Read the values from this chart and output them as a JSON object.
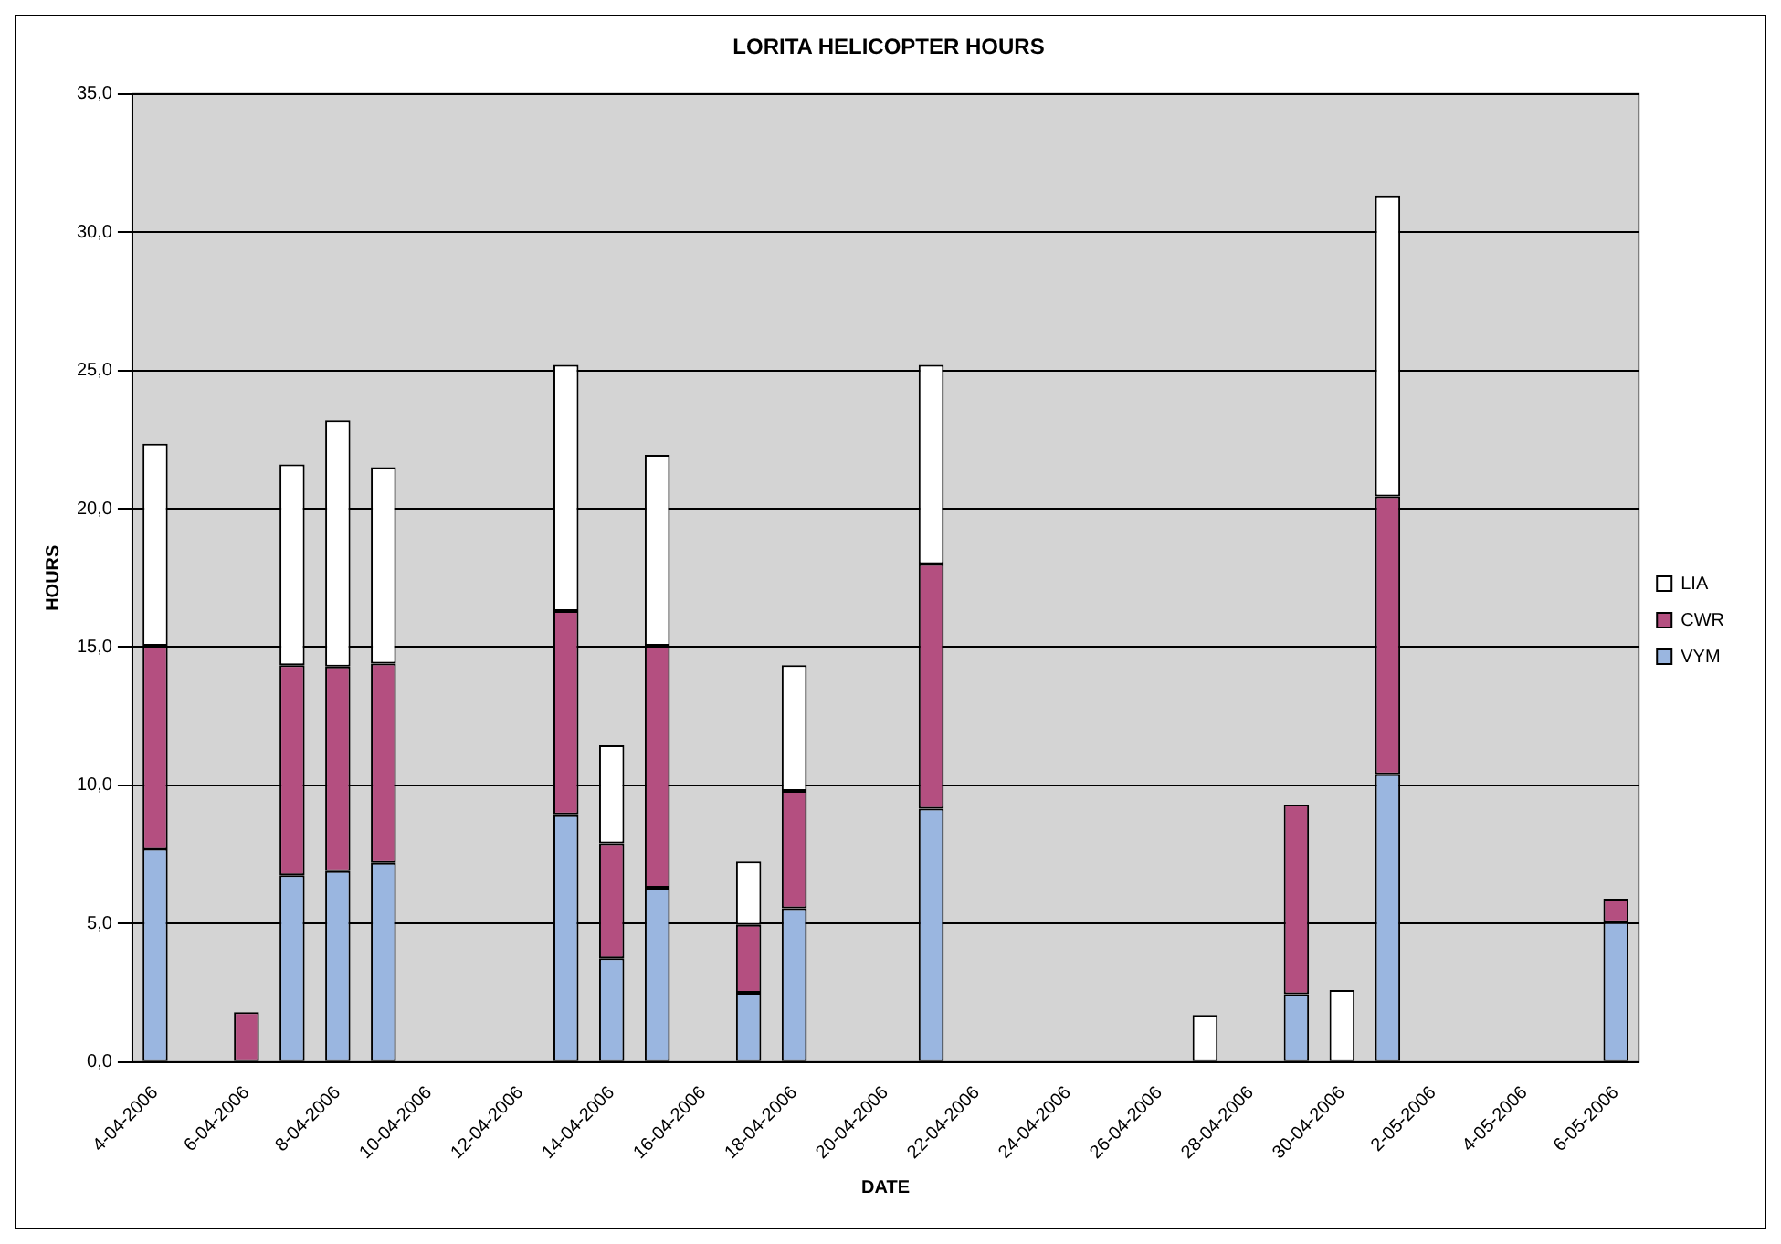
{
  "chart_data": {
    "type": "bar",
    "title": "LORITA HELICOPTER HOURS",
    "xlabel": "DATE",
    "ylabel": "HOURS",
    "stacked": true,
    "grid": "y",
    "legend": "right",
    "categories": [
      "4-04-2006",
      null,
      "6-04-2006",
      null,
      "8-04-2006",
      null,
      "10-04-2006",
      null,
      "12-04-2006",
      null,
      "14-04-2006",
      null,
      "16-04-2006",
      null,
      "18-04-2006",
      null,
      "20-04-2006",
      null,
      "22-04-2006",
      null,
      "24-04-2006",
      null,
      "26-04-2006",
      null,
      "28-04-2006",
      null,
      "30-04-2006",
      null,
      "2-05-2006",
      null,
      "4-05-2006",
      null,
      "6-05-2006"
    ],
    "series": [
      {
        "name": "VYM",
        "color": "#9ab6e0",
        "values": [
          7.7,
          null,
          null,
          6.75,
          6.9,
          7.2,
          null,
          null,
          null,
          8.95,
          3.75,
          6.3,
          null,
          2.5,
          5.55,
          null,
          null,
          9.15,
          null,
          null,
          null,
          null,
          null,
          null,
          null,
          2.45,
          null,
          10.4,
          null,
          null,
          null,
          null,
          5.05
        ]
      },
      {
        "name": "CWR",
        "color": "#b44f80",
        "values": [
          7.35,
          null,
          1.8,
          7.6,
          7.4,
          7.2,
          null,
          null,
          null,
          7.35,
          4.15,
          8.75,
          null,
          2.45,
          4.25,
          null,
          null,
          8.85,
          null,
          null,
          null,
          null,
          null,
          null,
          null,
          6.85,
          null,
          10.05,
          null,
          null,
          null,
          null,
          0.85
        ]
      },
      {
        "name": "LIA",
        "color": "#ffffff",
        "values": [
          7.3,
          null,
          null,
          7.25,
          8.9,
          7.1,
          null,
          null,
          null,
          8.9,
          3.55,
          6.9,
          null,
          2.3,
          4.55,
          null,
          null,
          7.2,
          null,
          null,
          null,
          null,
          null,
          1.7,
          null,
          null,
          2.6,
          10.85,
          null,
          null,
          null,
          null,
          null
        ]
      }
    ],
    "ylim": [
      0,
      35
    ],
    "yticks": [
      {
        "value": 0,
        "label": "0,0"
      },
      {
        "value": 5,
        "label": "5,0"
      },
      {
        "value": 10,
        "label": "10,0"
      },
      {
        "value": 15,
        "label": "15,0"
      },
      {
        "value": 20,
        "label": "20,0"
      },
      {
        "value": 25,
        "label": "25,0"
      },
      {
        "value": 30,
        "label": "30,0"
      },
      {
        "value": 35,
        "label": "35,0"
      }
    ]
  }
}
